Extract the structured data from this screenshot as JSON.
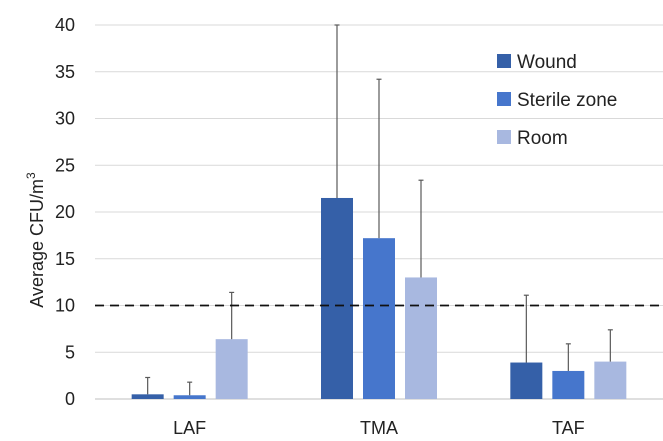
{
  "chart_data": {
    "type": "bar",
    "title": "",
    "xlabel": "",
    "ylabel": "Average CFU/m",
    "ylabel_superscript": "3",
    "ylim": [
      0,
      40
    ],
    "yticks": [
      0,
      5,
      10,
      15,
      20,
      25,
      30,
      35,
      40
    ],
    "grid": true,
    "legend_position": "top-right",
    "categories": [
      "LAF",
      "TMA",
      "TAF"
    ],
    "series": [
      {
        "name": "Wound",
        "color": "#3560a8",
        "values": [
          0.5,
          21.5,
          3.9
        ],
        "error": [
          1.8,
          19.0,
          7.2
        ]
      },
      {
        "name": "Sterile zone",
        "color": "#4676cc",
        "values": [
          0.4,
          17.2,
          3.0
        ],
        "error": [
          1.4,
          17.0,
          2.9
        ]
      },
      {
        "name": "Room",
        "color": "#a8b8e0",
        "values": [
          6.4,
          13.0,
          4.0
        ],
        "error": [
          5.0,
          10.4,
          3.4
        ]
      }
    ],
    "reference_line": {
      "value": 10,
      "style": "dashed"
    }
  }
}
